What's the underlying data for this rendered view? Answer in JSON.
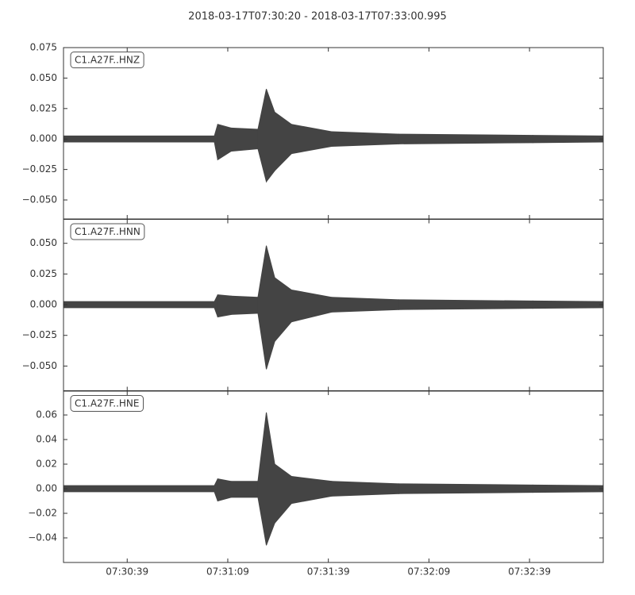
{
  "title": "2018-03-17T07:30:20  -  2018-03-17T07:33:00.995",
  "chart_data": [
    {
      "type": "waveform",
      "label": "C1.A27F..HNZ",
      "color": "#444444",
      "xlim": [
        "07:30:20",
        "07:33:00.995"
      ],
      "x": [
        "07:30:20",
        "07:31:05",
        "07:31:06",
        "07:31:10",
        "07:31:18",
        "07:31:20.5",
        "07:31:23",
        "07:31:28",
        "07:31:40",
        "07:32:00",
        "07:32:40",
        "07:33:00.995"
      ],
      "upper": [
        0.0025,
        0.0025,
        0.012,
        0.009,
        0.008,
        0.041,
        0.022,
        0.012,
        0.006,
        0.004,
        0.003,
        0.0025
      ],
      "lower": [
        -0.0025,
        -0.0025,
        -0.017,
        -0.01,
        -0.008,
        -0.035,
        -0.026,
        -0.012,
        -0.006,
        -0.004,
        -0.003,
        -0.0025
      ],
      "ylim": [
        -0.0656,
        0.075
      ],
      "yticks": [
        {
          "value": 0.075,
          "label": "0.075"
        },
        {
          "value": 0.05,
          "label": "0.050"
        },
        {
          "value": 0.025,
          "label": "0.025"
        },
        {
          "value": 0,
          "label": "0.000"
        },
        {
          "value": -0.025,
          "label": "−0.025"
        },
        {
          "value": -0.05,
          "label": "−0.050"
        }
      ]
    },
    {
      "type": "waveform",
      "label": "C1.A27F..HNN",
      "color": "#444444",
      "xlim": [
        "07:30:20",
        "07:33:00.995"
      ],
      "x": [
        "07:30:20",
        "07:31:05",
        "07:31:06",
        "07:31:10",
        "07:31:18",
        "07:31:20.5",
        "07:31:23",
        "07:31:28",
        "07:31:40",
        "07:32:00",
        "07:32:40",
        "07:33:00.995"
      ],
      "upper": [
        0.0025,
        0.0025,
        0.008,
        0.007,
        0.006,
        0.048,
        0.022,
        0.012,
        0.006,
        0.004,
        0.003,
        0.0025
      ],
      "lower": [
        -0.0025,
        -0.0025,
        -0.01,
        -0.008,
        -0.007,
        -0.0526,
        -0.03,
        -0.014,
        -0.006,
        -0.004,
        -0.003,
        -0.0025
      ],
      "ylim": [
        -0.0701,
        0.0695
      ],
      "yticks": [
        {
          "value": 0.05,
          "label": "0.050"
        },
        {
          "value": 0.025,
          "label": "0.025"
        },
        {
          "value": 0,
          "label": "0.000"
        },
        {
          "value": -0.025,
          "label": "−0.025"
        },
        {
          "value": -0.05,
          "label": "−0.050"
        }
      ]
    },
    {
      "type": "waveform",
      "label": "C1.A27F..HNE",
      "color": "#444444",
      "xlim": [
        "07:30:20",
        "07:33:00.995"
      ],
      "x": [
        "07:30:20",
        "07:31:05",
        "07:31:06",
        "07:31:10",
        "07:31:18",
        "07:31:20.5",
        "07:31:23",
        "07:31:28",
        "07:31:40",
        "07:32:00",
        "07:32:40",
        "07:33:00.995"
      ],
      "upper": [
        0.0025,
        0.0025,
        0.008,
        0.006,
        0.006,
        0.062,
        0.02,
        0.01,
        0.006,
        0.004,
        0.003,
        0.0025
      ],
      "lower": [
        -0.0025,
        -0.0025,
        -0.01,
        -0.007,
        -0.007,
        -0.046,
        -0.028,
        -0.012,
        -0.006,
        -0.004,
        -0.003,
        -0.0025
      ],
      "ylim": [
        -0.06,
        0.0794
      ],
      "yticks": [
        {
          "value": 0.06,
          "label": "0.06"
        },
        {
          "value": 0.04,
          "label": "0.04"
        },
        {
          "value": 0.02,
          "label": "0.02"
        },
        {
          "value": 0,
          "label": "0.00"
        },
        {
          "value": -0.02,
          "label": "−0.02"
        },
        {
          "value": -0.04,
          "label": "−0.04"
        }
      ],
      "xticks": [
        "07:30:39",
        "07:31:09",
        "07:31:39",
        "07:32:09",
        "07:32:39"
      ]
    }
  ]
}
